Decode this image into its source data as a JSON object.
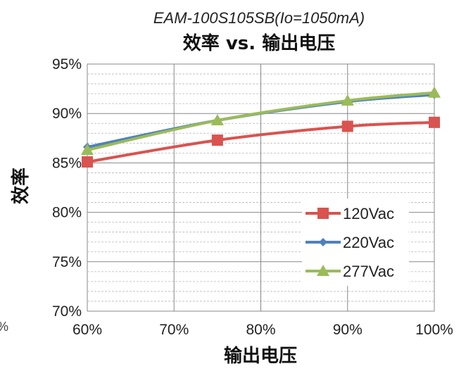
{
  "chart_data": {
    "type": "line",
    "subtitle": "EAM-100S105SB(Io=1050mA)",
    "title": "效率 vs. 输出电压",
    "xlabel": "输出电压",
    "ylabel": "效率",
    "x": [
      60,
      75,
      90,
      100
    ],
    "x_ticks": [
      "60%",
      "70%",
      "80%",
      "90%",
      "100%"
    ],
    "y_ticks": [
      "70%",
      "75%",
      "80%",
      "85%",
      "90%",
      "95%"
    ],
    "xlim": [
      60,
      100
    ],
    "ylim": [
      70,
      95
    ],
    "grid": true,
    "legend_position": "bottom-right",
    "series": [
      {
        "name": "120Vac",
        "values": [
          85.1,
          87.3,
          88.7,
          89.1
        ],
        "color": "#d9534f",
        "marker": "square"
      },
      {
        "name": "220Vac",
        "values": [
          86.6,
          89.3,
          91.2,
          91.9
        ],
        "color": "#4f81bd",
        "marker": "diamond"
      },
      {
        "name": "277Vac",
        "values": [
          86.3,
          89.3,
          91.3,
          92.1
        ],
        "color": "#9bbb59",
        "marker": "triangle"
      }
    ]
  },
  "stray_mark": "%"
}
